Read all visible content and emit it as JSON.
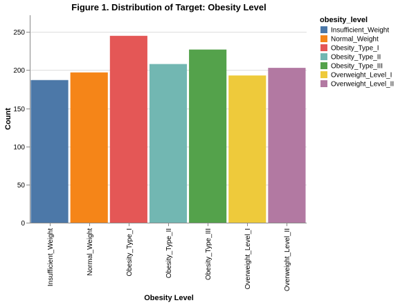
{
  "chart_data": {
    "type": "bar",
    "title": "Figure 1. Distribution of Target: Obesity Level",
    "xlabel": "Obesity Level",
    "ylabel": "Count",
    "ylim": [
      0,
      272
    ],
    "yticks": [
      0,
      50,
      100,
      150,
      200,
      250
    ],
    "grid": true,
    "categories": [
      "Insufficient_Weight",
      "Normal_Weight",
      "Obesity_Type_I",
      "Obesity_Type_II",
      "Obesity_Type_III",
      "Overweight_Level_I",
      "Overweight_Level_II"
    ],
    "values": [
      187,
      197,
      245,
      208,
      227,
      193,
      203
    ],
    "colors": [
      "#4c78a8",
      "#f58518",
      "#e45756",
      "#72b7b2",
      "#54a24b",
      "#eeca3b",
      "#b279a2"
    ],
    "legend": {
      "title": "obesity_level",
      "placement": "top-right",
      "items": [
        "Insufficient_Weight",
        "Normal_Weight",
        "Obesity_Type_I",
        "Obesity_Type_II",
        "Obesity_Type_III",
        "Overweight_Level_I",
        "Overweight_Level_II"
      ]
    }
  }
}
